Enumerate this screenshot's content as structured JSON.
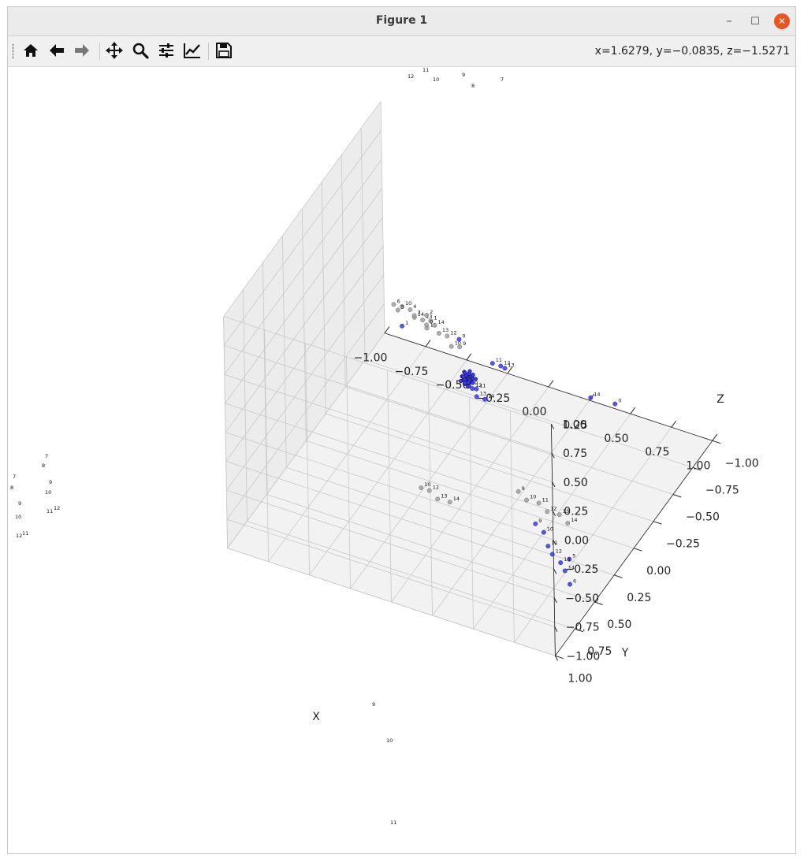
{
  "window": {
    "title": "Figure 1",
    "minimize_glyph": "–",
    "maximize_glyph": "☐",
    "close_glyph": "✕"
  },
  "toolbar": {
    "tools": [
      {
        "name": "home-button",
        "icon": "home-icon"
      },
      {
        "name": "back-button",
        "icon": "arrow-left-icon"
      },
      {
        "name": "forward-button",
        "icon": "arrow-right-icon"
      },
      {
        "name": "pan-button",
        "icon": "move-icon"
      },
      {
        "name": "zoom-button",
        "icon": "magnifier-icon"
      },
      {
        "name": "configure-subplots-button",
        "icon": "sliders-icon"
      },
      {
        "name": "edit-axes-button",
        "icon": "line-chart-icon"
      },
      {
        "name": "save-button",
        "icon": "floppy-disk-icon"
      }
    ],
    "coordinates": "x=1.6279, y=−0.0835, z=−1.5271"
  },
  "axes": {
    "x": {
      "label": "X",
      "ticks": [
        "−1.00",
        "−0.75",
        "−0.50",
        "−0.25",
        "0.00",
        "0.25",
        "0.50",
        "0.75",
        "1.00"
      ]
    },
    "y": {
      "label": "Y",
      "ticks": [
        "−1.00",
        "−0.75",
        "−0.50",
        "−0.25",
        "0.00",
        "0.25",
        "0.50",
        "0.75",
        "1.00"
      ]
    },
    "z": {
      "label": "Z",
      "ticks": [
        "−1.00",
        "−0.75",
        "−0.50",
        "−0.25",
        "0.00",
        "0.25",
        "0.50",
        "0.75",
        "1.00"
      ]
    }
  },
  "colors": {
    "blue_points": "#3a3af0",
    "gray_points": "#a0a0a0",
    "grid": "#c8c8c8",
    "pane": "#f2f2f2"
  },
  "chart_data": {
    "type": "scatter",
    "projection": "3d",
    "grid": true,
    "xlim": [
      -1,
      1
    ],
    "ylim": [
      -1,
      1
    ],
    "zlim": [
      -1,
      1
    ],
    "series": [
      {
        "color": "blue",
        "points": [
          {
            "label": "0",
            "x": -0.1,
            "y": -0.1,
            "z": 0.2
          },
          {
            "label": "10",
            "x": 0.05,
            "y": 0.1,
            "z": 0.05
          },
          {
            "label": "11",
            "x": 0.1,
            "y": 0.1,
            "z": 0.05
          },
          {
            "label": "12",
            "x": 0.1,
            "y": 0.15,
            "z": 0.1
          },
          {
            "label": "13",
            "x": 0.15,
            "y": 0.2,
            "z": 0.1
          },
          {
            "label": "14",
            "x": 0.2,
            "y": 0.2,
            "z": 0.1
          },
          {
            "label": "1",
            "x": -0.3,
            "y": 0.2,
            "z": 0.5
          },
          {
            "label": "11",
            "x": 0.3,
            "y": 0.3,
            "z": 0.55
          },
          {
            "label": "12",
            "x": 0.35,
            "y": 0.3,
            "z": 0.55
          },
          {
            "label": "13",
            "x": 0.4,
            "y": 0.35,
            "z": 0.6
          },
          {
            "label": "14",
            "x": 0.8,
            "y": 0.1,
            "z": 0.3
          },
          {
            "label": "0",
            "x": 0.9,
            "y": 0.0,
            "z": 0.2
          },
          {
            "label": "5",
            "x": 0.85,
            "y": 0.5,
            "z": -0.7
          },
          {
            "label": "6",
            "x": 0.9,
            "y": 0.6,
            "z": -0.8
          },
          {
            "label": "9",
            "x": 0.3,
            "y": -0.2,
            "z": -1.3
          },
          {
            "label": "10",
            "x": 0.35,
            "y": -0.2,
            "z": -1.35
          },
          {
            "label": "11",
            "x": 0.4,
            "y": -0.15,
            "z": -1.4
          },
          {
            "label": "12",
            "x": 0.45,
            "y": -0.1,
            "z": -1.4
          },
          {
            "label": "13",
            "x": 0.5,
            "y": -0.1,
            "z": -1.45
          },
          {
            "label": "14",
            "x": 0.55,
            "y": -0.05,
            "z": -1.45
          }
        ]
      },
      {
        "color": "gray",
        "points": [
          {
            "label": "10",
            "x": -0.2,
            "y": 0.4,
            "z": 0.9
          },
          {
            "label": "14",
            "x": -0.1,
            "y": 0.45,
            "z": 0.9
          },
          {
            "label": "13",
            "x": -0.05,
            "y": 0.45,
            "z": 0.9
          },
          {
            "label": "11",
            "x": 0.0,
            "y": 0.5,
            "z": 0.9
          },
          {
            "label": "5",
            "x": -0.25,
            "y": 0.35,
            "z": 0.8
          },
          {
            "label": "6",
            "x": -0.3,
            "y": 0.3,
            "z": 0.78
          },
          {
            "label": "4",
            "x": -0.2,
            "y": 0.3,
            "z": 0.78
          },
          {
            "label": "3",
            "x": -0.15,
            "y": 0.35,
            "z": 0.8
          },
          {
            "label": "2",
            "x": -0.1,
            "y": 0.3,
            "z": 0.78
          },
          {
            "label": "1",
            "x": -0.05,
            "y": 0.35,
            "z": 0.8
          },
          {
            "label": "9",
            "x": 0.1,
            "y": 0.3,
            "z": 0.6
          },
          {
            "label": "10",
            "x": 0.05,
            "y": 0.3,
            "z": 0.58
          },
          {
            "label": "12",
            "x": 0.0,
            "y": 0.25,
            "z": 0.6
          },
          {
            "label": "13",
            "x": -0.05,
            "y": 0.25,
            "z": 0.6
          },
          {
            "label": "14",
            "x": -0.1,
            "y": 0.2,
            "z": 0.6
          },
          {
            "label": "0",
            "x": -0.15,
            "y": 0.2,
            "z": 0.58
          },
          {
            "label": "10",
            "x": -0.2,
            "y": 0.2,
            "z": -0.85
          },
          {
            "label": "12",
            "x": -0.15,
            "y": 0.2,
            "z": -0.85
          },
          {
            "label": "13",
            "x": -0.1,
            "y": 0.2,
            "z": -0.9
          },
          {
            "label": "14",
            "x": -0.05,
            "y": 0.15,
            "z": -0.95
          },
          {
            "label": "9",
            "x": 0.1,
            "y": -0.4,
            "z": -1.3
          },
          {
            "label": "10",
            "x": 0.15,
            "y": -0.4,
            "z": -1.35
          },
          {
            "label": "11",
            "x": 0.2,
            "y": -0.45,
            "z": -1.4
          },
          {
            "label": "12",
            "x": 0.25,
            "y": -0.45,
            "z": -1.45
          },
          {
            "label": "13",
            "x": 0.3,
            "y": -0.5,
            "z": -1.5
          },
          {
            "label": "14",
            "x": 0.35,
            "y": -0.5,
            "z": -1.55
          }
        ]
      }
    ],
    "outer_labels": [
      {
        "group": "top",
        "labels": [
          "12",
          "11",
          "10",
          "9",
          "8",
          "7"
        ]
      },
      {
        "group": "left",
        "labels": [
          "7",
          "8",
          "7",
          "8",
          "9",
          "10",
          "9",
          "10",
          "12",
          "11",
          "12",
          "11"
        ]
      },
      {
        "group": "bottom",
        "labels": [
          "9",
          "10",
          "11"
        ]
      }
    ]
  }
}
